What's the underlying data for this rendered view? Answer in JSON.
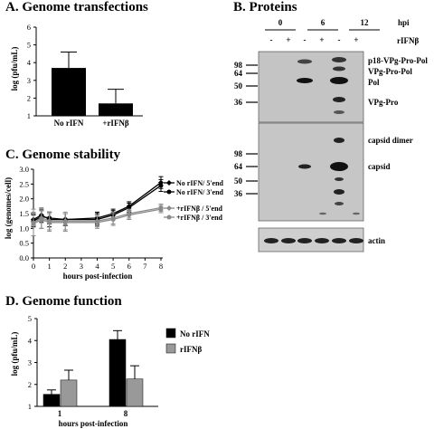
{
  "panels": {
    "a": "A.  Genome transfections",
    "b": "B.  Proteins",
    "c": "C.  Genome stability",
    "d": "D.  Genome function"
  },
  "chart_data": [
    {
      "id": "A",
      "type": "bar",
      "title": "Genome transfections",
      "ylabel": "log (pfu/mL)",
      "categories": [
        "No rIFN",
        "+rIFNβ"
      ],
      "values": [
        3.7,
        1.7
      ],
      "errors": [
        0.9,
        0.8
      ],
      "ylim": [
        1,
        6
      ],
      "yticks": [
        "1",
        "2",
        "3",
        "4",
        "5",
        "6"
      ],
      "bar_color": "#000000",
      "grid": false
    },
    {
      "id": "C",
      "type": "line",
      "title": "Genome stability",
      "xlabel": "hours post-infection",
      "ylabel": "log (genomes/cell)",
      "x": [
        0,
        0.5,
        1,
        2,
        4,
        5,
        6,
        8
      ],
      "xticks": [
        "0",
        "1",
        "2",
        "3",
        "4",
        "5",
        "6",
        "7",
        "8"
      ],
      "ylim": [
        0,
        3
      ],
      "yticks": [
        "0.0",
        "0.5",
        "1.0",
        "1.5",
        "2.0",
        "2.5",
        "3.0"
      ],
      "legend": "right",
      "series": [
        {
          "name": "No rIFN/ 5'end",
          "color": "#000000",
          "marker": "diamond",
          "values": [
            1.3,
            1.45,
            1.3,
            1.3,
            1.35,
            1.5,
            1.75,
            2.55
          ],
          "errors": [
            0.2,
            0.2,
            0.25,
            0.2,
            0.2,
            0.15,
            0.15,
            0.2
          ]
        },
        {
          "name": "No rIFN/ 3'end",
          "color": "#000000",
          "marker": "circle",
          "values": [
            1.25,
            1.4,
            1.35,
            1.3,
            1.3,
            1.45,
            1.7,
            2.45
          ],
          "errors": [
            0.2,
            0.2,
            0.2,
            0.2,
            0.2,
            0.15,
            0.15,
            0.2
          ]
        },
        {
          "name": "+rIFNβ / 5'end",
          "color": "#8a8a8a",
          "marker": "diamond",
          "values": [
            1.2,
            1.35,
            1.25,
            1.25,
            1.25,
            1.35,
            1.5,
            1.7
          ],
          "errors": [
            0.45,
            0.35,
            0.3,
            0.3,
            0.2,
            0.2,
            0.15,
            0.12
          ]
        },
        {
          "name": "+rIFNβ / 3'end",
          "color": "#8a8a8a",
          "marker": "circle",
          "values": [
            1.15,
            1.3,
            1.2,
            1.2,
            1.2,
            1.3,
            1.45,
            1.65
          ],
          "errors": [
            0.4,
            0.3,
            0.3,
            0.3,
            0.2,
            0.2,
            0.15,
            0.12
          ]
        }
      ]
    },
    {
      "id": "D",
      "type": "bar",
      "title": "Genome function",
      "xlabel": "hours post-infection",
      "ylabel": "log (pfu/mL)",
      "categories": [
        "1",
        "8"
      ],
      "ylim": [
        1,
        5
      ],
      "yticks": [
        "1",
        "2",
        "3",
        "4",
        "5"
      ],
      "legend": "right",
      "series": [
        {
          "name": "No rIFN",
          "color": "#000000",
          "values": [
            1.55,
            4.05
          ],
          "errors": [
            0.2,
            0.4
          ]
        },
        {
          "name": "rIFNβ",
          "color": "#999999",
          "values": [
            2.2,
            2.25
          ],
          "errors": [
            0.45,
            0.6
          ]
        }
      ]
    }
  ],
  "blot": {
    "hpi_label": "hpi",
    "rifn_label": "rIFNβ",
    "times": [
      "0",
      "6",
      "12"
    ],
    "lanes": [
      "-",
      "+",
      "-",
      "+",
      "-",
      "+"
    ],
    "top_mw": [
      "98",
      "64",
      "50",
      "36"
    ],
    "top_bands": [
      "p18-VPg-Pro-Pol",
      "VPg-Pro-Pol",
      "Pol",
      "VPg-Pro"
    ],
    "mid_mw": [
      "98",
      "64",
      "50",
      "36"
    ],
    "mid_bands": [
      "capsid dimer",
      "capsid"
    ],
    "bottom_band": "actin"
  }
}
